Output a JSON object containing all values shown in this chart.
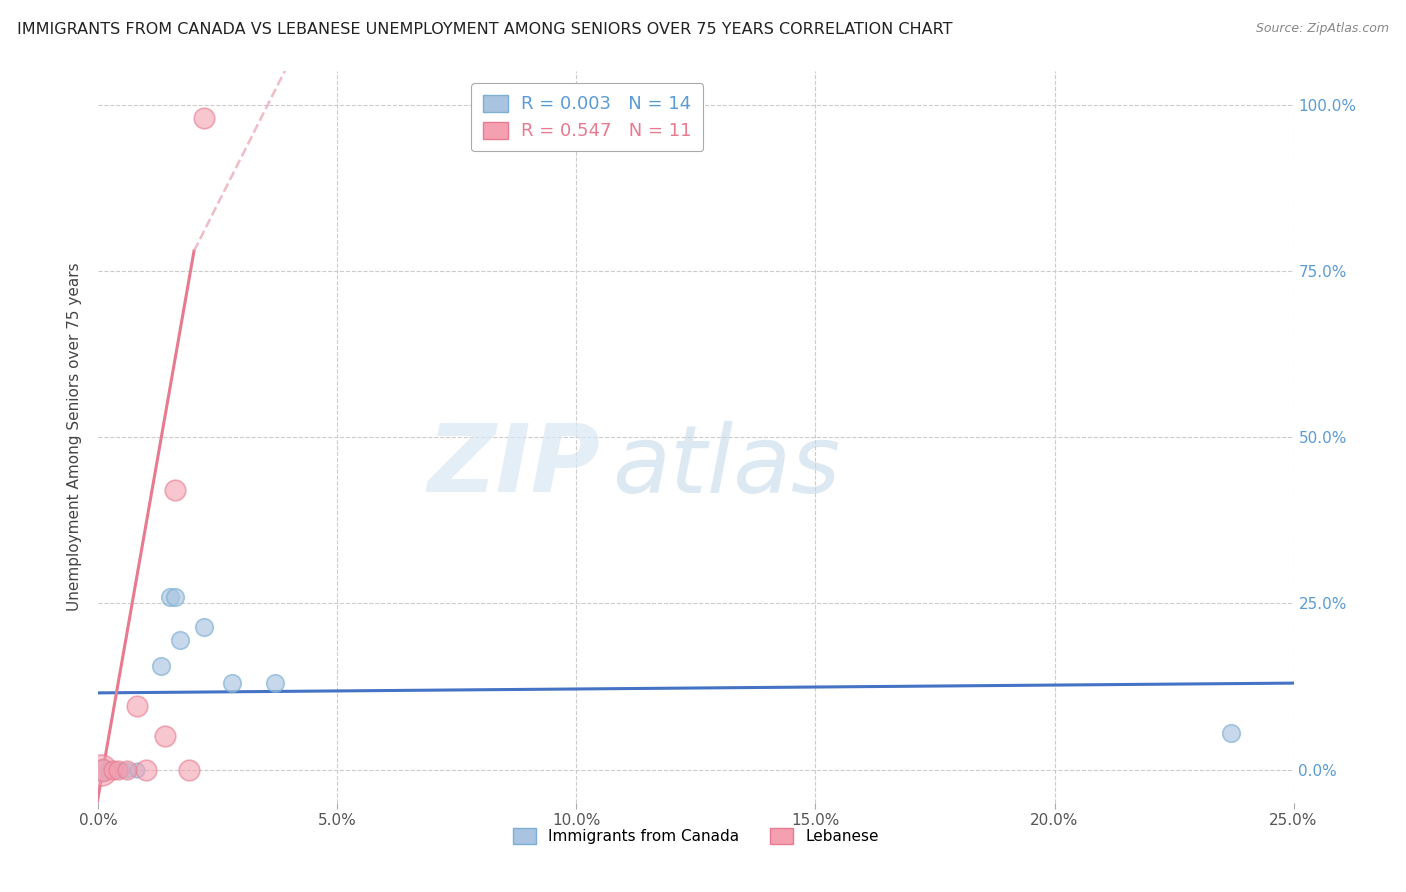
{
  "title": "IMMIGRANTS FROM CANADA VS LEBANESE UNEMPLOYMENT AMONG SENIORS OVER 75 YEARS CORRELATION CHART",
  "source": "Source: ZipAtlas.com",
  "xlabel_ticks": [
    "0.0%",
    "5.0%",
    "10.0%",
    "15.0%",
    "20.0%",
    "25.0%"
  ],
  "ylabel_label": "Unemployment Among Seniors over 75 years",
  "R_canada": 0.003,
  "N_canada": 14,
  "R_lebanese": 0.547,
  "N_lebanese": 11,
  "canada_color": "#7bafd4",
  "canada_face": "#a8c4e0",
  "lebanese_color": "#e87a90",
  "lebanese_face": "#f4a0b0",
  "watermark_zip": "ZIP",
  "watermark_atlas": "atlas",
  "xlim": [
    0.0,
    0.25
  ],
  "ylim": [
    -0.05,
    1.05
  ],
  "xticks": [
    0.0,
    0.05,
    0.1,
    0.15,
    0.2,
    0.25
  ],
  "yticks": [
    0.0,
    0.25,
    0.5,
    0.75,
    1.0
  ],
  "ytick_labels": [
    "0.0%",
    "25.0%",
    "50.0%",
    "75.0%",
    "100.0%"
  ],
  "canada_points": [
    [
      0.001,
      0.0
    ],
    [
      0.002,
      0.0
    ],
    [
      0.004,
      0.0
    ],
    [
      0.005,
      0.0
    ],
    [
      0.006,
      0.0
    ],
    [
      0.008,
      0.0
    ],
    [
      0.013,
      0.155
    ],
    [
      0.015,
      0.26
    ],
    [
      0.016,
      0.26
    ],
    [
      0.017,
      0.195
    ],
    [
      0.022,
      0.215
    ],
    [
      0.028,
      0.13
    ],
    [
      0.037,
      0.13
    ],
    [
      0.237,
      0.055
    ]
  ],
  "canada_sizes": [
    220,
    130,
    110,
    110,
    110,
    110,
    160,
    160,
    160,
    160,
    160,
    160,
    160,
    160
  ],
  "lebanese_points": [
    [
      0.0005,
      0.0
    ],
    [
      0.001,
      0.0
    ],
    [
      0.003,
      0.0
    ],
    [
      0.004,
      0.0
    ],
    [
      0.006,
      0.0
    ],
    [
      0.008,
      0.095
    ],
    [
      0.01,
      0.0
    ],
    [
      0.014,
      0.05
    ],
    [
      0.016,
      0.42
    ],
    [
      0.019,
      0.0
    ],
    [
      0.022,
      0.98
    ]
  ],
  "lebanese_sizes": [
    500,
    250,
    180,
    180,
    180,
    220,
    220,
    220,
    220,
    220,
    220
  ],
  "trend_canada": {
    "x": [
      -0.005,
      0.25
    ],
    "y": [
      0.115,
      0.13
    ]
  },
  "trend_leb_solid": {
    "x": [
      -0.001,
      0.02
    ],
    "y": [
      -0.08,
      0.78
    ]
  },
  "trend_leb_dashed": {
    "x": [
      0.02,
      0.06
    ],
    "y": [
      0.78,
      1.35
    ]
  }
}
